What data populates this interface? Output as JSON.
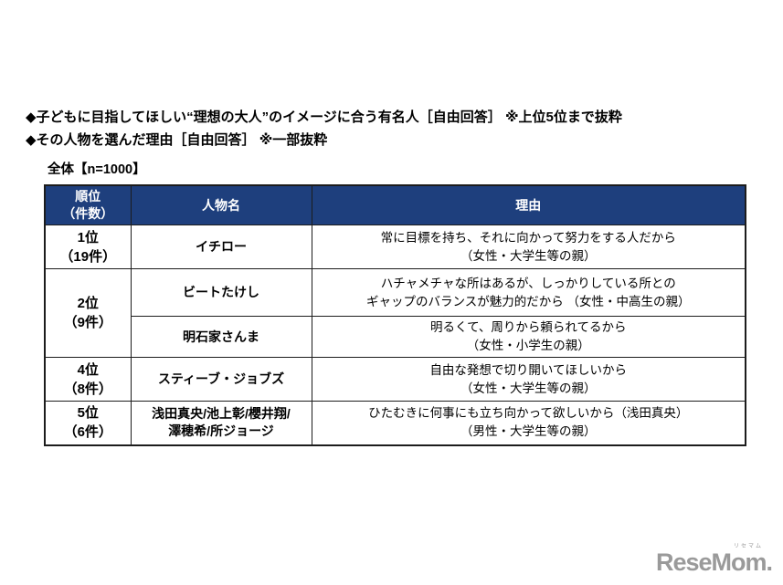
{
  "page": {
    "title_line1": "◆子どもに目指してほしい“理想の大人”のイメージに合う有名人［自由回答］ ※上位5位まで抜粋",
    "title_line2": "◆その人物を選んだ理由［自由回答］ ※一部抜粋",
    "sample_label": "全体【n=1000】"
  },
  "table": {
    "headers": {
      "rank": "順位\n（件数）",
      "name": "人物名",
      "reason": "理由"
    },
    "rows": [
      {
        "rank": "1位\n（19件）",
        "name": "イチロー",
        "reason": "常に目標を持ち、それに向かって努力をする人だから\n（女性・大学生等の親）"
      },
      {
        "rank": "2位\n（9件）",
        "name": "ビートたけし",
        "reason": "ハチャメチャな所はあるが、しっかりしている所との\nギャップのバランスが魅力的だから （女性・中高生の親）"
      },
      {
        "name": "明石家さんま",
        "reason": "明るくて、周りから頼られてるから\n（女性・小学生の親）"
      },
      {
        "rank": "4位\n（8件）",
        "name": "スティーブ・ジョブズ",
        "reason": "自由な発想で切り開いてほしいから\n（女性・大学生等の親）"
      },
      {
        "rank": "5位\n（6件）",
        "name": "浅田真央/池上彰/櫻井翔/\n澤穂希/所ジョージ",
        "reason": "ひたむきに何事にも立ち向かって欲しいから（浅田真央）\n（男性・大学生等の親）"
      }
    ]
  },
  "logo": {
    "text": "ReseMom.",
    "ruby": "リセマム"
  },
  "colors": {
    "header_bg": "#1e3f7d",
    "header_text": "#ffffff",
    "border": "#1c1c1c",
    "logo_gray": "#9a9a9a"
  }
}
